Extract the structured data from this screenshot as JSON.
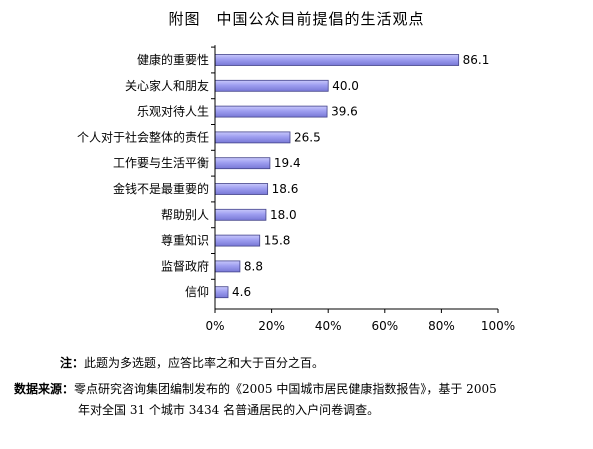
{
  "figure": {
    "title": "附图　中国公众目前提倡的生活观点"
  },
  "chart_data": {
    "type": "bar",
    "orientation": "horizontal",
    "title": "附图　中国公众目前提倡的生活观点",
    "categories": [
      "健康的重要性",
      "关心家人和朋友",
      "乐观对待人生",
      "个人对于社会整体的责任",
      "工作要与生活平衡",
      "金钱不是最重要的",
      "帮助别人",
      "尊重知识",
      "监督政府",
      "信仰"
    ],
    "values": [
      86.1,
      40.0,
      39.6,
      26.5,
      19.4,
      18.6,
      18.0,
      15.8,
      8.8,
      4.6
    ],
    "value_labels": [
      "86.1",
      "40.0",
      "39.6",
      "26.5",
      "19.4",
      "18.6",
      "18.0",
      "15.8",
      "8.8",
      "4.6"
    ],
    "xlim": [
      0,
      100
    ],
    "x_ticks": [
      0,
      20,
      40,
      60,
      80,
      100
    ],
    "x_tick_labels": [
      "0%",
      "20%",
      "40%",
      "60%",
      "80%",
      "100%"
    ],
    "grid": false,
    "bar_color": "#9999ee",
    "bar_edge_color": "#44448a"
  },
  "notes": {
    "note_label": "注：",
    "note_text": "此题为多选题，应答比率之和大于百分之百。",
    "source_label": "数据来源：",
    "source_line1": "零点研究咨询集团编制发布的《2005 中国城市居民健康指数报告》，基于 2005",
    "source_line2": "年对全国 31 个城市 3434 名普通居民的入户问卷调查。"
  }
}
